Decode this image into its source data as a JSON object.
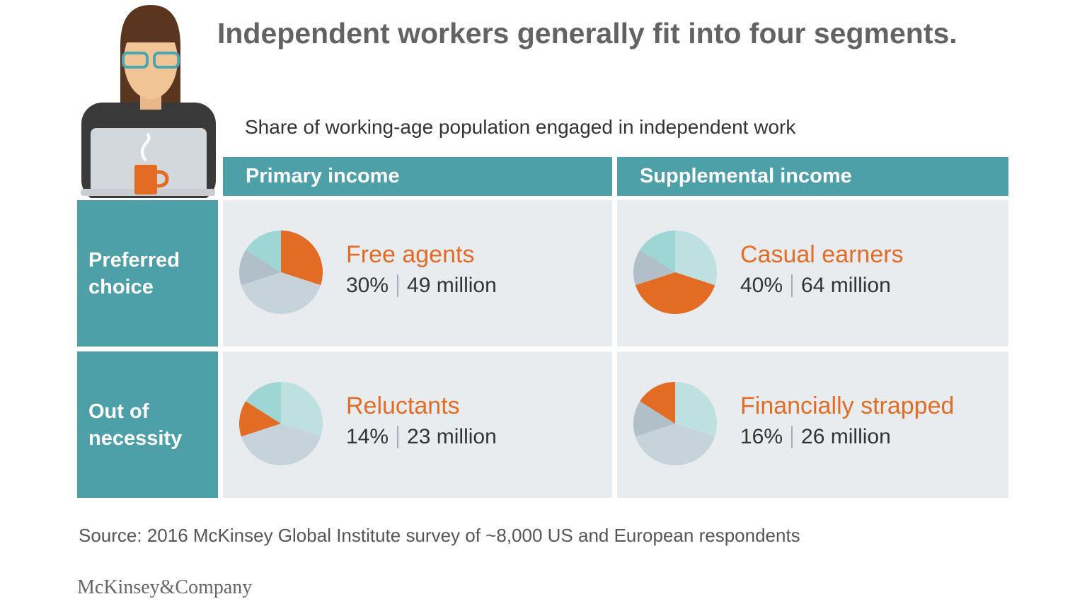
{
  "title": "Independent workers generally fit into four segments.",
  "subtitle": "Share of working-age population engaged in independent work",
  "columns": [
    "Primary income",
    "Supplemental income"
  ],
  "rows": [
    "Preferred choice",
    "Out of necessity"
  ],
  "segments": [
    {
      "name": "Free agents",
      "share": 30,
      "share_label": "30%",
      "count": "49 million"
    },
    {
      "name": "Casual earners",
      "share": 40,
      "share_label": "40%",
      "count": "64 million"
    },
    {
      "name": "Reluctants",
      "share": 14,
      "share_label": "14%",
      "count": "23 million"
    },
    {
      "name": "Financially strapped",
      "share": 16,
      "share_label": "16%",
      "count": "26 million"
    }
  ],
  "pie_colors": [
    "#bfe0e0",
    "#c6d3da",
    "#b0bfc8",
    "#9ed6d6"
  ],
  "highlight_color": "#e36c25",
  "source": "Source: 2016 McKinsey Global Institute survey of ~8,000 US and European respondents",
  "logo": "McKinsey&Company"
}
